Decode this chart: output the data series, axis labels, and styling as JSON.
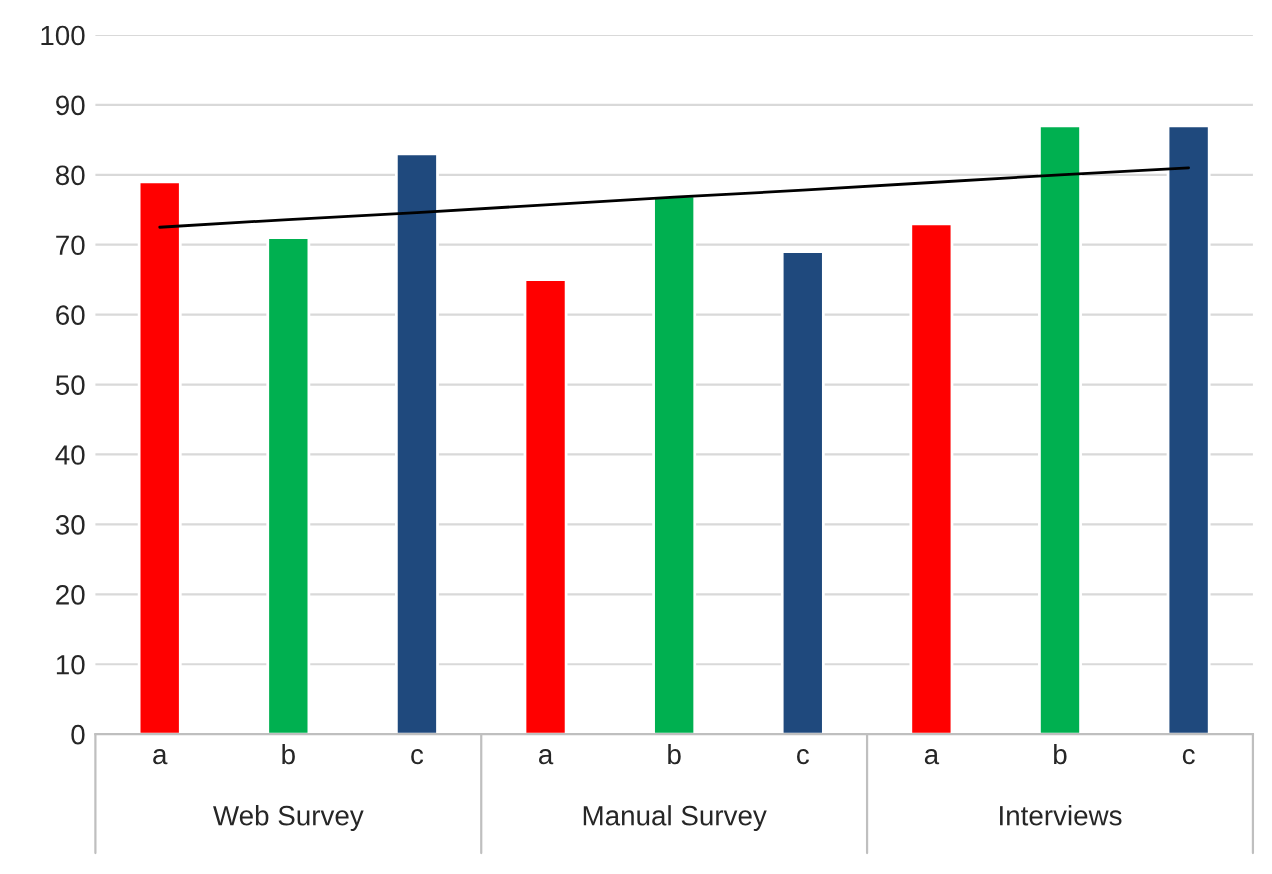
{
  "chart_data": {
    "type": "bar",
    "categories": [
      "a",
      "b",
      "c",
      "a",
      "b",
      "c",
      "a",
      "b",
      "c"
    ],
    "series": [
      {
        "values": [
          79,
          71,
          83,
          65,
          77,
          69,
          73,
          87,
          87
        ],
        "colors": [
          "#ff0000",
          "#00b050",
          "#1f497d",
          "#ff0000",
          "#00b050",
          "#1f497d",
          "#ff0000",
          "#00b050",
          "#1f497d"
        ]
      },
      {
        "type": "line",
        "color": "#000000",
        "values": [
          72.5,
          73.6,
          74.6,
          75.7,
          76.8,
          77.8,
          78.9,
          80.0,
          81.0
        ]
      }
    ],
    "annotations": [
      "Web Survey",
      "Manual Survey",
      "Interviews"
    ],
    "ylim": [
      0,
      100
    ],
    "yticks": [
      0,
      10,
      20,
      30,
      40,
      50,
      60,
      70,
      80,
      90,
      100
    ],
    "grid": "y",
    "legend": false
  }
}
